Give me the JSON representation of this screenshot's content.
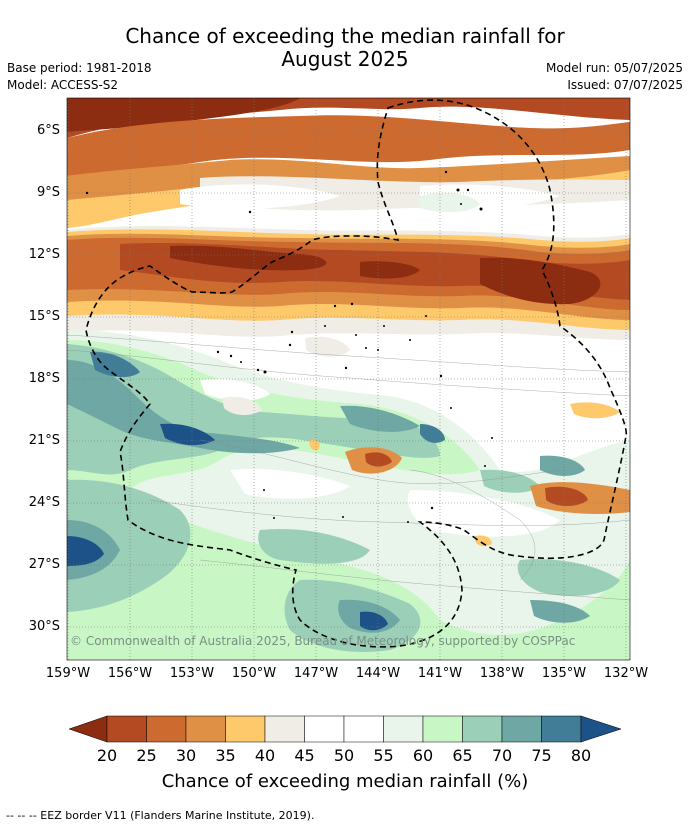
{
  "header": {
    "title_line1": "Chance of exceeding the median rainfall for",
    "title_line2": "August 2025",
    "base_period": "Base period: 1981-2018",
    "model": "Model: ACCESS-S2",
    "model_run": "Model run: 05/07/2025",
    "issued": "Issued: 07/07/2025"
  },
  "map": {
    "lat_labels": [
      "6°S",
      "9°S",
      "12°S",
      "15°S",
      "18°S",
      "21°S",
      "24°S",
      "27°S",
      "30°S"
    ],
    "lon_labels": [
      "159°W",
      "156°W",
      "153°W",
      "150°W",
      "147°W",
      "144°W",
      "141°W",
      "138°W",
      "135°W",
      "132°W"
    ],
    "copyright": "© Commonwealth of Australia 2025, Bureau of Meteorology, supported by COSPPac"
  },
  "colorbar": {
    "ticks": [
      "20",
      "25",
      "30",
      "35",
      "40",
      "45",
      "50",
      "55",
      "60",
      "65",
      "70",
      "75",
      "80"
    ],
    "colors": [
      "#8c2d12",
      "#b34a22",
      "#cc6a30",
      "#e09045",
      "#fdc96a",
      "#f0ede6",
      "#ffffff",
      "#ffffff",
      "#e9f5ea",
      "#c8f7c5",
      "#9ccfb7",
      "#6ea7a4",
      "#427d98",
      "#1d5288"
    ],
    "label": "Chance of exceeding median rainfall (%)"
  },
  "footer": {
    "text": "-- -- -- EEZ border V11 (Flanders Marine Institute, 2019)."
  }
}
